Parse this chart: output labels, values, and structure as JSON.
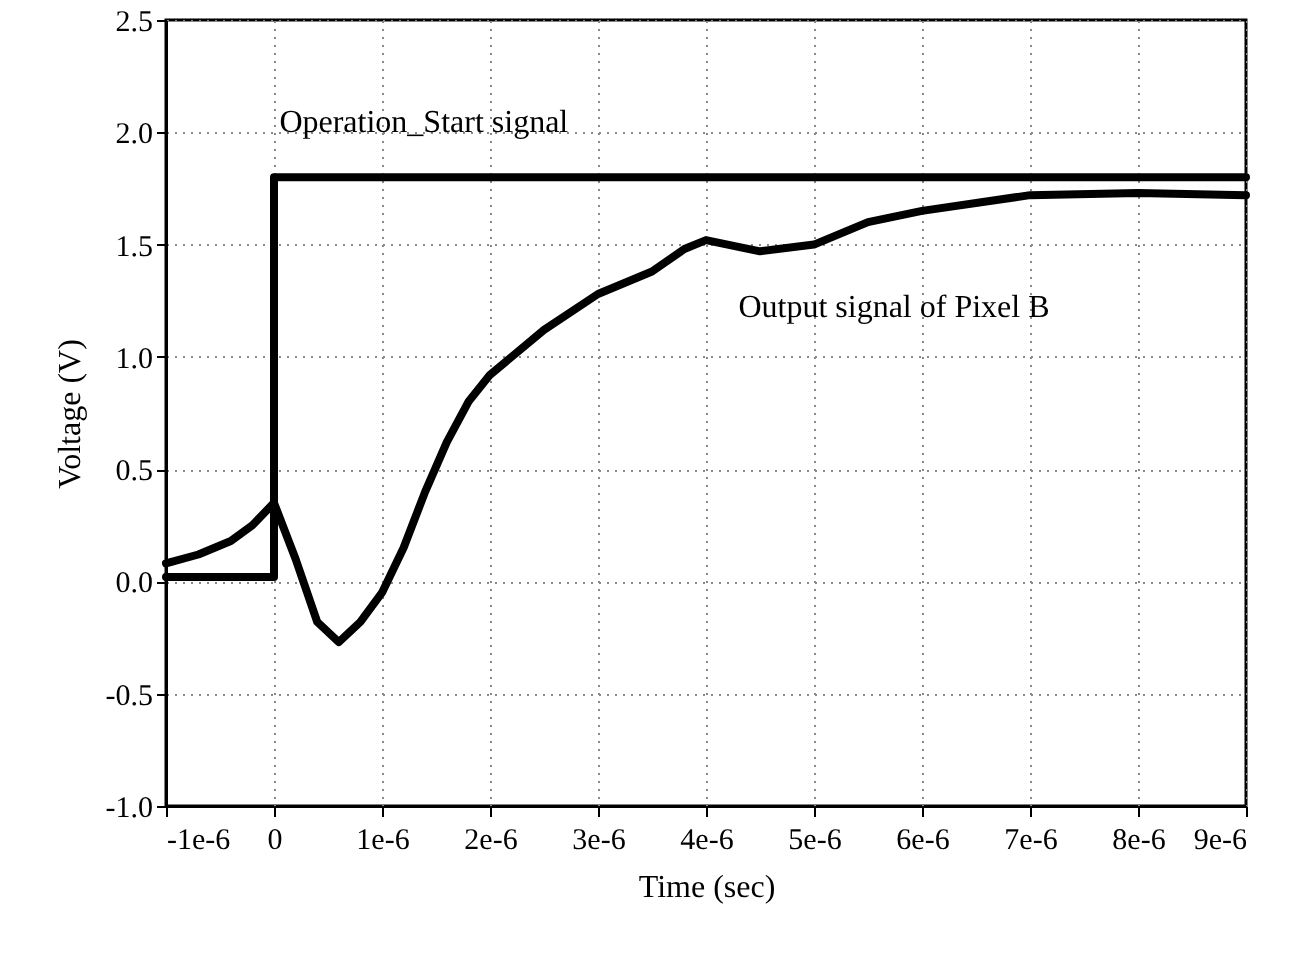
{
  "chart_data": {
    "type": "line",
    "xlabel": "Time (sec)",
    "ylabel": "Voltage (V)",
    "xlim": [
      -1e-06,
      9e-06
    ],
    "xticks": [
      {
        "value": -1e-06,
        "label": "-1e-6"
      },
      {
        "value": 0,
        "label": "0"
      },
      {
        "value": 1e-06,
        "label": "1e-6"
      },
      {
        "value": 2e-06,
        "label": "2e-6"
      },
      {
        "value": 3e-06,
        "label": "3e-6"
      },
      {
        "value": 4e-06,
        "label": "4e-6"
      },
      {
        "value": 5e-06,
        "label": "5e-6"
      },
      {
        "value": 6e-06,
        "label": "6e-6"
      },
      {
        "value": 7e-06,
        "label": "7e-6"
      },
      {
        "value": 8e-06,
        "label": "8e-6"
      },
      {
        "value": 9e-06,
        "label": "9e-6"
      }
    ],
    "ylim": [
      -1.0,
      2.5
    ],
    "yticks": [
      {
        "value": -1,
        "label": "-1.0"
      },
      {
        "value": -0.5,
        "label": "-0.5"
      },
      {
        "value": 0,
        "label": "0.0"
      },
      {
        "value": 0.5,
        "label": "0.5"
      },
      {
        "value": 1,
        "label": "1.0"
      },
      {
        "value": 1.5,
        "label": "1.5"
      },
      {
        "value": 2,
        "label": "2.0"
      },
      {
        "value": 2.5,
        "label": "2.5"
      }
    ],
    "grid": true,
    "line_style": "solid",
    "marker": "none",
    "series": [
      {
        "name": "Operation_Start signal",
        "color": "#000000",
        "x": [
          -1e-06,
          -5e-07,
          0,
          0,
          5e-07,
          2e-06,
          4e-06,
          6e-06,
          8e-06,
          9e-06
        ],
        "values": [
          0.02,
          0.02,
          0.02,
          1.8,
          1.8,
          1.8,
          1.8,
          1.8,
          1.8,
          1.8
        ]
      },
      {
        "name": "Output signal of Pixel B",
        "color": "#000000",
        "x": [
          -1e-06,
          -7e-07,
          -4e-07,
          -2e-07,
          0,
          2e-07,
          4e-07,
          6e-07,
          8e-07,
          1e-06,
          1.2e-06,
          1.4e-06,
          1.6e-06,
          1.8e-06,
          2e-06,
          2.5e-06,
          3e-06,
          3.5e-06,
          3.8e-06,
          4e-06,
          4.5e-06,
          5e-06,
          5.5e-06,
          6e-06,
          7e-06,
          8e-06,
          9e-06
        ],
        "values": [
          0.08,
          0.12,
          0.18,
          0.25,
          0.35,
          0.1,
          -0.18,
          -0.27,
          -0.18,
          -0.05,
          0.15,
          0.4,
          0.62,
          0.8,
          0.92,
          1.12,
          1.28,
          1.38,
          1.48,
          1.52,
          1.47,
          1.5,
          1.6,
          1.65,
          1.72,
          1.73,
          1.72
        ]
      }
    ]
  }
}
